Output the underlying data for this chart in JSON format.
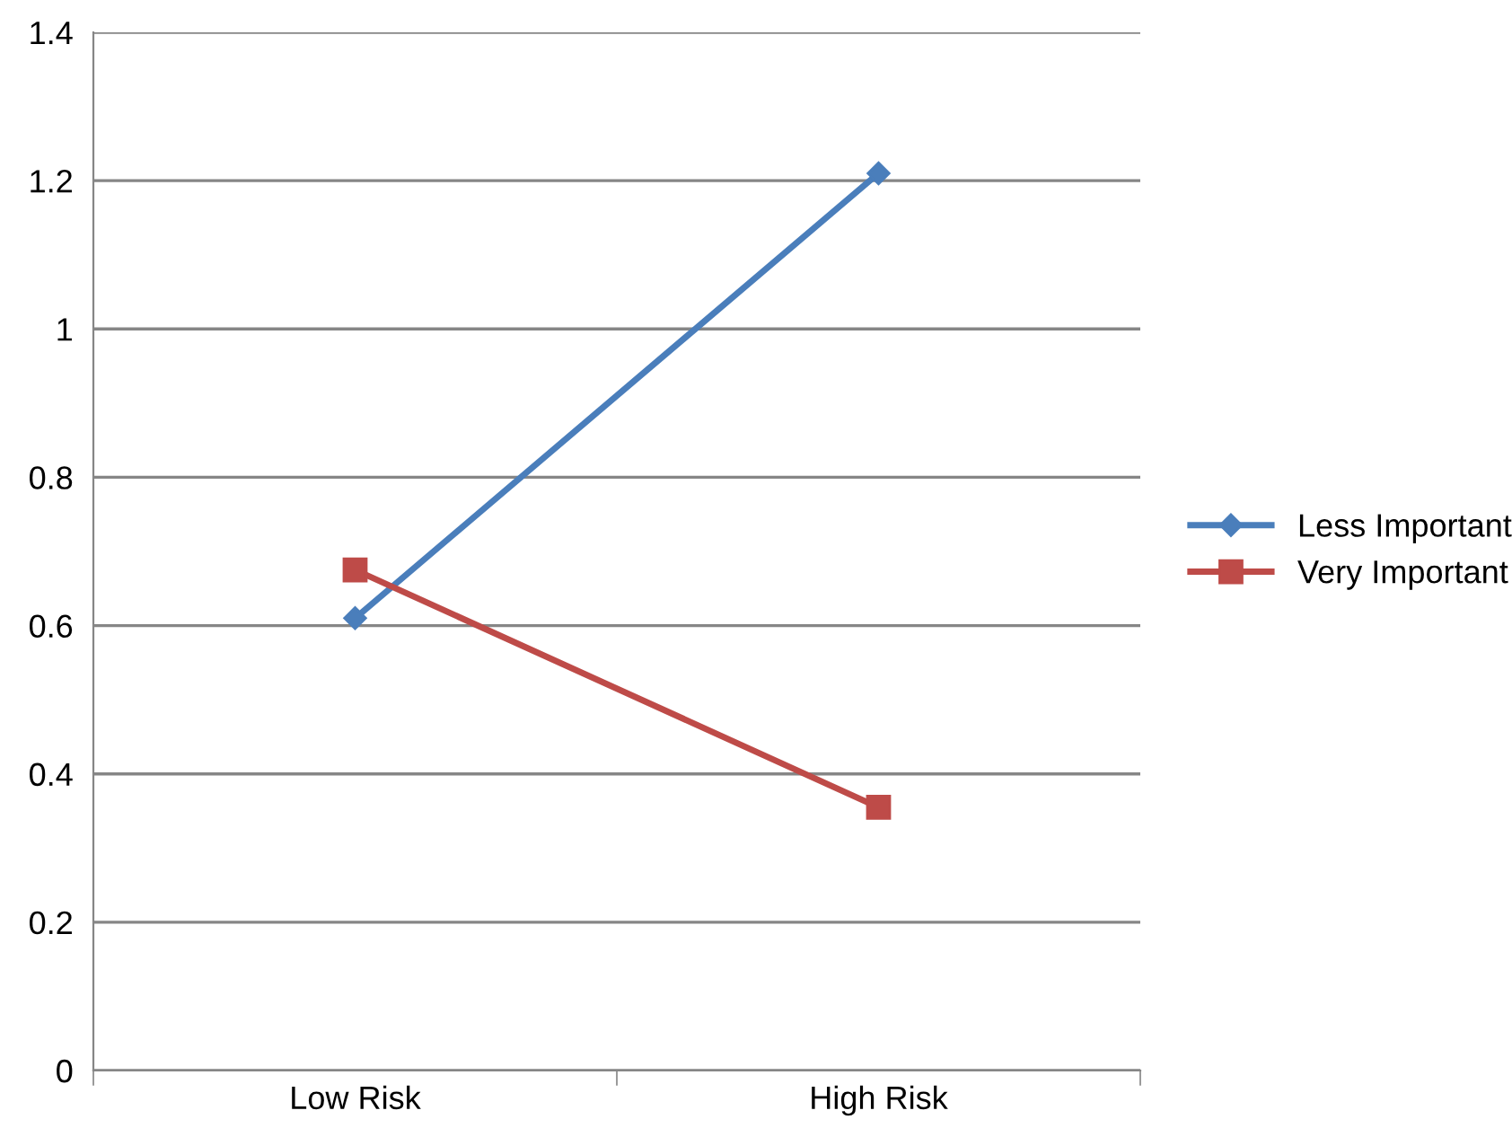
{
  "chart_data": {
    "type": "line",
    "categories": [
      "Low Risk",
      "High Risk"
    ],
    "series": [
      {
        "name": "Less Important",
        "color": "#4a7ebb",
        "marker": "diamond",
        "values": [
          0.61,
          1.21
        ]
      },
      {
        "name": "Very Important",
        "color": "#be4b48",
        "marker": "square",
        "values": [
          0.675,
          0.355
        ]
      }
    ],
    "ylim": [
      0,
      1.4
    ],
    "yticks": [
      0,
      0.2,
      0.4,
      0.6,
      0.8,
      1,
      1.2,
      1.4
    ],
    "grid": "y",
    "legend": "right",
    "line_style": "solid"
  }
}
